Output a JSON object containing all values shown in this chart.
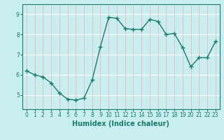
{
  "x": [
    0,
    1,
    2,
    3,
    4,
    5,
    6,
    7,
    8,
    9,
    10,
    11,
    12,
    13,
    14,
    15,
    16,
    17,
    18,
    19,
    20,
    21,
    22,
    23
  ],
  "y": [
    6.2,
    6.0,
    5.9,
    5.6,
    5.1,
    4.8,
    4.75,
    4.85,
    5.75,
    7.4,
    8.85,
    8.8,
    8.3,
    8.25,
    8.25,
    8.75,
    8.65,
    8.0,
    8.05,
    7.35,
    6.4,
    6.85,
    6.85,
    7.65
  ],
  "line_color": "#1a7a6e",
  "bg_color": "#c8eef0",
  "grid_h_color": "#ffffff",
  "grid_v_color": "#f0b8b8",
  "xlabel": "Humidex (Indice chaleur)",
  "xlim": [
    -0.5,
    23.5
  ],
  "ylim": [
    4.3,
    9.5
  ],
  "yticks": [
    5,
    6,
    7,
    8,
    9
  ],
  "xticks": [
    0,
    1,
    2,
    3,
    4,
    5,
    6,
    7,
    8,
    9,
    10,
    11,
    12,
    13,
    14,
    15,
    16,
    17,
    18,
    19,
    20,
    21,
    22,
    23
  ],
  "marker": "+",
  "markersize": 4,
  "linewidth": 1.0,
  "xlabel_fontsize": 7,
  "tick_fontsize": 5.5,
  "tick_color": "#1a7a6e",
  "spine_color": "#1a7a6e"
}
